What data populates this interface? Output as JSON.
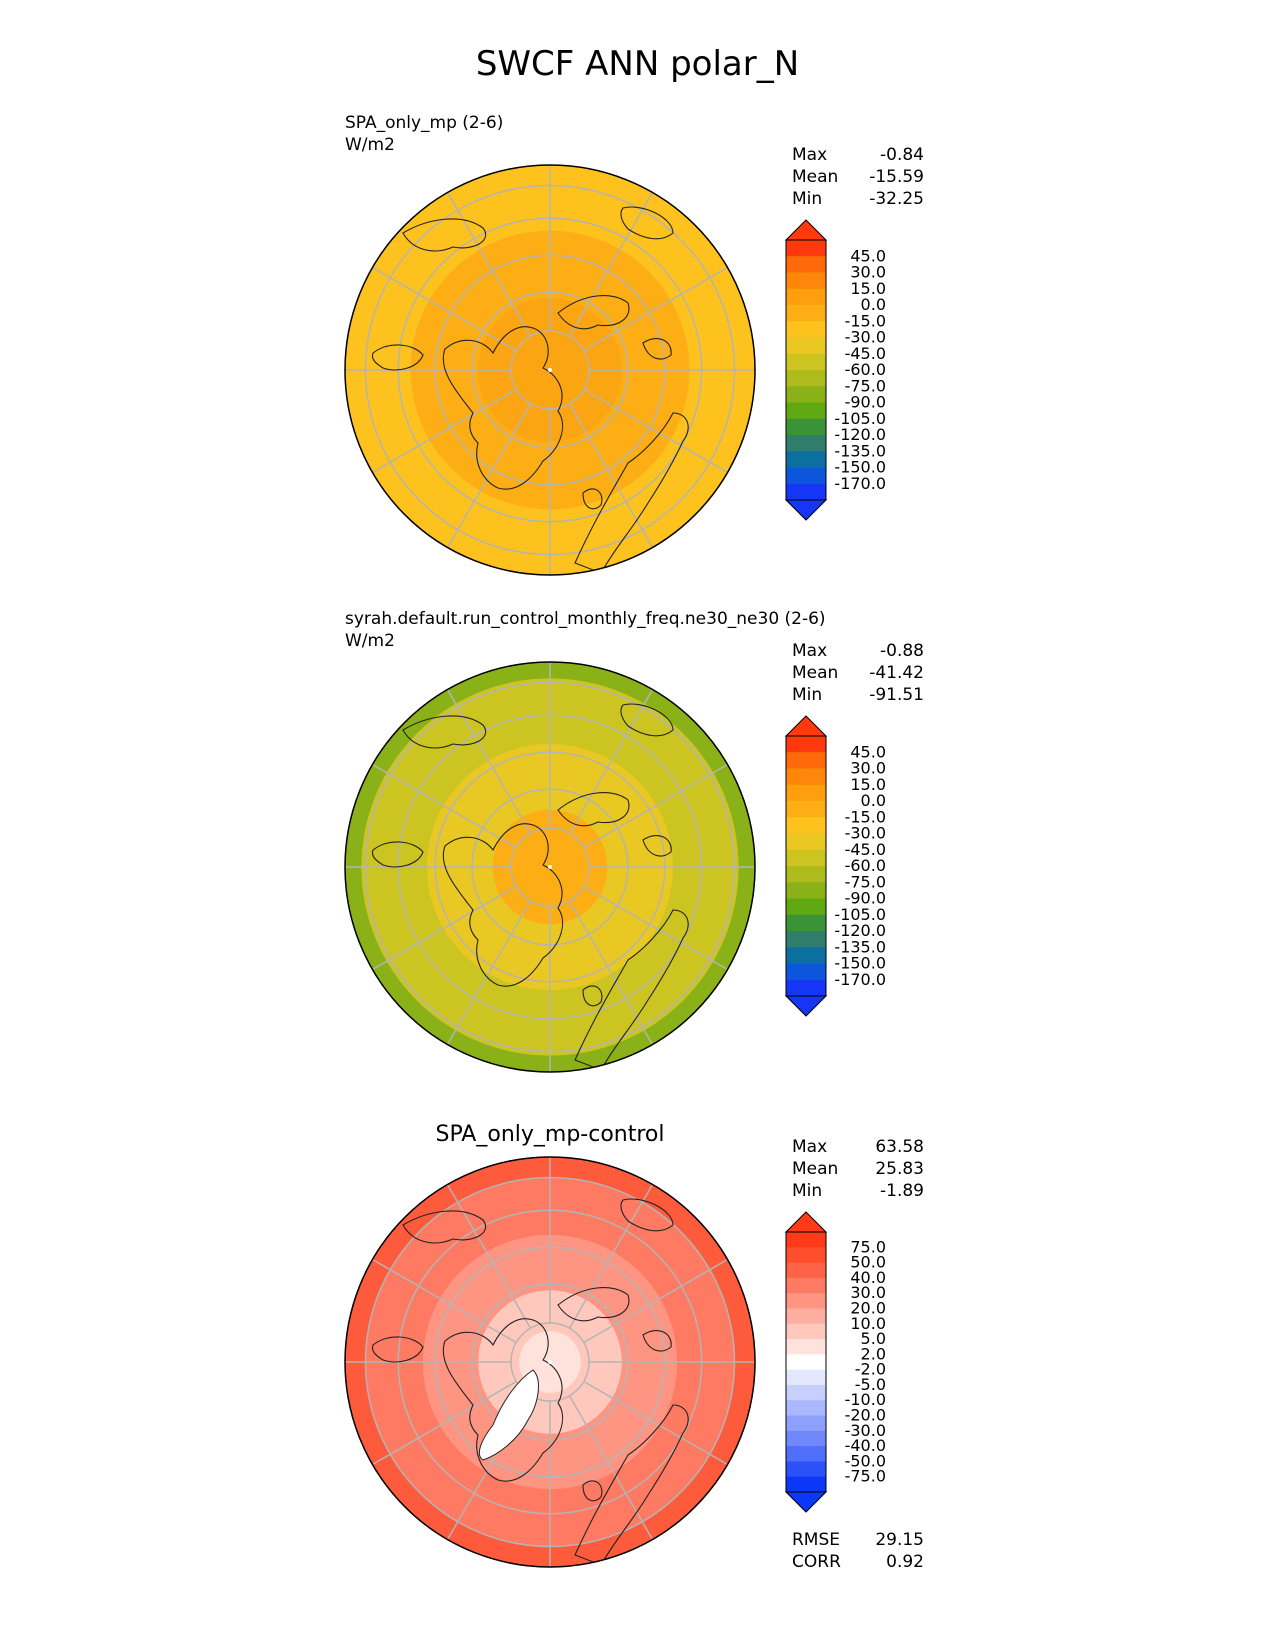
{
  "figure": {
    "title": "SWCF ANN polar_N"
  },
  "colors": {
    "ocean_land_outline": "#222222",
    "grid": "#b4b4b4",
    "border": "#000000"
  },
  "chart_data": [
    {
      "type": "heatmap",
      "projection": "north polar stereographic",
      "title": "SPA_only_mp (2-6)",
      "units": "W/m2",
      "stats": {
        "max_label": "Max",
        "max": "-0.84",
        "mean_label": "Mean",
        "mean": "-15.59",
        "min_label": "Min",
        "min": "-32.25"
      },
      "colorbar": {
        "labels": [
          "45.0",
          "30.0",
          "15.0",
          "0.0",
          "-15.0",
          "-30.0",
          "-45.0",
          "-60.0",
          "-75.0",
          "-90.0",
          "-105.0",
          "-120.0",
          "-135.0",
          "-150.0",
          "-170.0"
        ],
        "colors": [
          "#fe3a0d",
          "#fe6a0a",
          "#fe860a",
          "#fd9f0f",
          "#fdae15",
          "#fdc21e",
          "#e9c823",
          "#ccc421",
          "#aebb1d",
          "#8bb118",
          "#60a80f",
          "#3a9437",
          "#2f7f6c",
          "#0d6fa0",
          "#0c56dc",
          "#1537f5"
        ]
      },
      "field_levels": [
        {
          "r": 1.0,
          "value": -33.0,
          "color": "#fdc21e"
        },
        {
          "r": 0.68,
          "value": -22.0,
          "color": "#fdae15"
        },
        {
          "r": 0.35,
          "value": -18.0,
          "color": "#fca512"
        }
      ]
    },
    {
      "type": "heatmap",
      "projection": "north polar stereographic",
      "title": "syrah.default.run_control_monthly_freq.ne30_ne30 (2-6)",
      "units": "W/m2",
      "stats": {
        "max_label": "Max",
        "max": "-0.88",
        "mean_label": "Mean",
        "mean": "-41.42",
        "min_label": "Min",
        "min": "-91.51"
      },
      "colorbar": {
        "labels": [
          "45.0",
          "30.0",
          "15.0",
          "0.0",
          "-15.0",
          "-30.0",
          "-45.0",
          "-60.0",
          "-75.0",
          "-90.0",
          "-105.0",
          "-120.0",
          "-135.0",
          "-150.0",
          "-170.0"
        ],
        "colors": [
          "#fe3a0d",
          "#fe6a0a",
          "#fe860a",
          "#fd9f0f",
          "#fdae15",
          "#fdc21e",
          "#e9c823",
          "#ccc421",
          "#aebb1d",
          "#8bb118",
          "#60a80f",
          "#3a9437",
          "#2f7f6c",
          "#0d6fa0",
          "#0c56dc",
          "#1537f5"
        ]
      },
      "field_levels": [
        {
          "r": 1.0,
          "value": -75.0,
          "color": "#8bb118"
        },
        {
          "r": 0.92,
          "value": -55.0,
          "color": "#ccc421"
        },
        {
          "r": 0.6,
          "value": -40.0,
          "color": "#e9c823"
        },
        {
          "r": 0.28,
          "value": -20.0,
          "color": "#fdae15"
        }
      ]
    },
    {
      "type": "heatmap",
      "projection": "north polar stereographic",
      "title": "SPA_only_mp-control",
      "units": "",
      "stats": {
        "max_label": "Max",
        "max": "63.58",
        "mean_label": "Mean",
        "mean": "25.83",
        "min_label": "Min",
        "min": "-1.89"
      },
      "extra_stats": {
        "rmse_label": "RMSE",
        "rmse": "29.15",
        "corr_label": "CORR",
        "corr": "0.92"
      },
      "colorbar": {
        "labels": [
          "75.0",
          "50.0",
          "40.0",
          "30.0",
          "20.0",
          "10.0",
          "5.0",
          "2.0",
          "-2.0",
          "-5.0",
          "-10.0",
          "-20.0",
          "-30.0",
          "-40.0",
          "-50.0",
          "-75.0"
        ],
        "colors": [
          "#fe3a17",
          "#fe4e2c",
          "#fe6247",
          "#fe7a62",
          "#fe9583",
          "#feaea0",
          "#fec8bd",
          "#fee2db",
          "#ffffff",
          "#e4e8fe",
          "#c7d0fd",
          "#aab8fd",
          "#8da0fc",
          "#7088fb",
          "#4f6efa",
          "#2b52f8",
          "#0b38f6"
        ]
      },
      "field_levels": [
        {
          "r": 1.0,
          "value": 45.0,
          "color": "#fe5a3c"
        },
        {
          "r": 0.9,
          "value": 35.0,
          "color": "#fe7a62"
        },
        {
          "r": 0.62,
          "value": 25.0,
          "color": "#fe9583"
        },
        {
          "r": 0.35,
          "value": 12.0,
          "color": "#fec8bd"
        },
        {
          "r": 0.15,
          "value": 4.0,
          "color": "#fee2db"
        }
      ]
    }
  ]
}
